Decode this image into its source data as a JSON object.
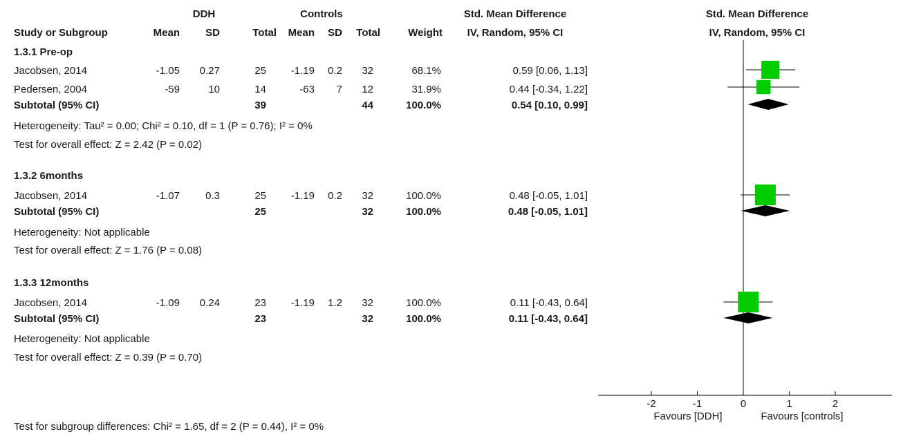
{
  "header": {
    "group1": "DDH",
    "group2": "Controls",
    "smd_title_table": "Std. Mean Difference",
    "smd_sub_table": "IV, Random, 95% CI",
    "smd_title_plot": "Std. Mean Difference",
    "smd_sub_plot": "IV, Random, 95% CI",
    "study_col": "Study or Subgroup",
    "mean1": "Mean",
    "sd1": "SD",
    "total1": "Total",
    "mean2": "Mean",
    "sd2": "SD",
    "total2": "Total",
    "weight": "Weight"
  },
  "subgroups": [
    {
      "title": "1.3.1 Pre-op",
      "studies": [
        {
          "name": "Jacobsen, 2014",
          "mean1": "-1.05",
          "sd1": "0.27",
          "n1": "25",
          "mean2": "-1.19",
          "sd2": "0.2",
          "n2": "32",
          "weight": "68.1%",
          "ci_text": "0.59 [0.06, 1.13]"
        },
        {
          "name": "Pedersen, 2004",
          "mean1": "-59",
          "sd1": "10",
          "n1": "14",
          "mean2": "-63",
          "sd2": "7",
          "n2": "12",
          "weight": "31.9%",
          "ci_text": "0.44 [-0.34, 1.22]"
        }
      ],
      "subtotal": {
        "label": "Subtotal (95% CI)",
        "n1": "39",
        "n2": "44",
        "weight": "100.0%",
        "ci_text": "0.54 [0.10, 0.99]"
      },
      "heterogeneity": "Heterogeneity: Tau² = 0.00; Chi² = 0.10, df = 1 (P = 0.76); I² = 0%",
      "overall": "Test for overall effect: Z = 2.42 (P = 0.02)"
    },
    {
      "title": "1.3.2 6months",
      "studies": [
        {
          "name": "Jacobsen, 2014",
          "mean1": "-1.07",
          "sd1": "0.3",
          "n1": "25",
          "mean2": "-1.19",
          "sd2": "0.2",
          "n2": "32",
          "weight": "100.0%",
          "ci_text": "0.48 [-0.05, 1.01]"
        }
      ],
      "subtotal": {
        "label": "Subtotal (95% CI)",
        "n1": "25",
        "n2": "32",
        "weight": "100.0%",
        "ci_text": "0.48 [-0.05, 1.01]"
      },
      "heterogeneity": "Heterogeneity: Not applicable",
      "overall": "Test for overall effect: Z = 1.76 (P = 0.08)"
    },
    {
      "title": "1.3.3 12months",
      "studies": [
        {
          "name": "Jacobsen, 2014",
          "mean1": "-1.09",
          "sd1": "0.24",
          "n1": "23",
          "mean2": "-1.19",
          "sd2": "1.2",
          "n2": "32",
          "weight": "100.0%",
          "ci_text": "0.11 [-0.43, 0.64]"
        }
      ],
      "subtotal": {
        "label": "Subtotal (95% CI)",
        "n1": "23",
        "n2": "32",
        "weight": "100.0%",
        "ci_text": "0.11 [-0.43, 0.64]"
      },
      "heterogeneity": "Heterogeneity: Not applicable",
      "overall": "Test for overall effect: Z = 0.39 (P = 0.70)"
    }
  ],
  "subgroup_test": "Test for subgroup differences: Chi² = 1.65, df = 2 (P = 0.44), I² = 0%",
  "favours_left": "Favours [DDH]",
  "favours_right": "Favours [controls]",
  "colors": {
    "marker": "#00cc00",
    "diamond": "#000000",
    "line": "#000000"
  },
  "chart_data": {
    "type": "forest",
    "xlim": [
      -2.9,
      3.2
    ],
    "xticks": [
      -2,
      -1,
      0,
      1,
      2
    ],
    "xtick_labels": [
      "-2",
      "-1",
      "0",
      "1",
      "2"
    ],
    "studies": [
      {
        "subgroup": "1.3.1 Pre-op",
        "name": "Jacobsen, 2014",
        "est": 0.59,
        "lo": 0.06,
        "hi": 1.13,
        "weight": 68.1
      },
      {
        "subgroup": "1.3.1 Pre-op",
        "name": "Pedersen, 2004",
        "est": 0.44,
        "lo": -0.34,
        "hi": 1.22,
        "weight": 31.9
      },
      {
        "subgroup": "1.3.2 6months",
        "name": "Jacobsen, 2014",
        "est": 0.48,
        "lo": -0.05,
        "hi": 1.01,
        "weight": 100.0
      },
      {
        "subgroup": "1.3.3 12months",
        "name": "Jacobsen, 2014",
        "est": 0.11,
        "lo": -0.43,
        "hi": 0.64,
        "weight": 100.0
      }
    ],
    "subtotals": [
      {
        "subgroup": "1.3.1 Pre-op",
        "est": 0.54,
        "lo": 0.1,
        "hi": 0.99
      },
      {
        "subgroup": "1.3.2 6months",
        "est": 0.48,
        "lo": -0.05,
        "hi": 1.01
      },
      {
        "subgroup": "1.3.3 12months",
        "est": 0.11,
        "lo": -0.43,
        "hi": 0.64
      }
    ]
  }
}
